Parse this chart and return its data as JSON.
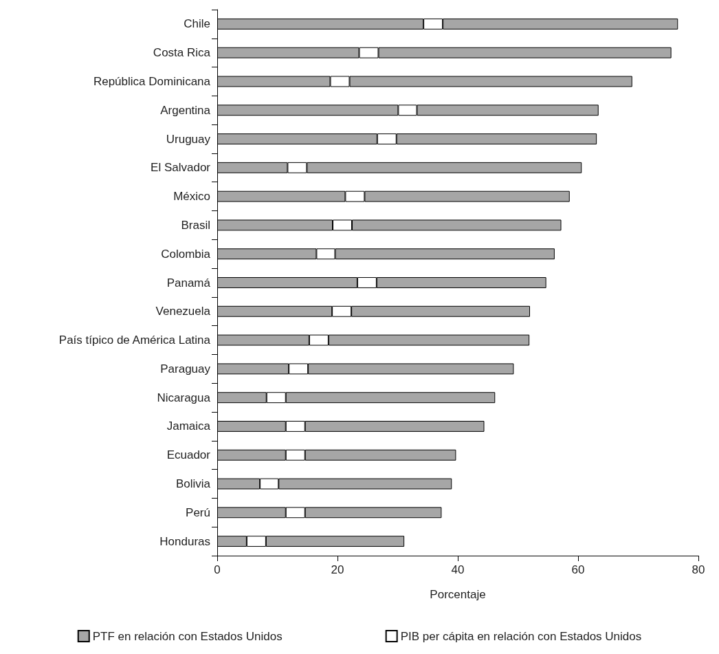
{
  "chart_data": {
    "type": "bar",
    "orientation": "horizontal",
    "stacked": true,
    "categories": [
      "Chile",
      "Costa Rica",
      "República Dominicana",
      "Argentina",
      "Uruguay",
      "El Salvador",
      "México",
      "Brasil",
      "Colombia",
      "Panamá",
      "Venezuela",
      "País típico de América Latina",
      "Paraguay",
      "Nicaragua",
      "Jamaica",
      "Ecuador",
      "Bolivia",
      "Perú",
      "Honduras"
    ],
    "series": [
      {
        "color": "#a6a6a6",
        "values": [
          34.3,
          23.6,
          18.8,
          30.1,
          26.6,
          11.7,
          21.3,
          19.2,
          16.5,
          23.3,
          19.1,
          15.3,
          11.9,
          8.2,
          11.4,
          11.4,
          7.1,
          11.4,
          4.9
        ]
      },
      {
        "name": "PIB per cápita en relación con Estados Unidos",
        "color": "#ffffff",
        "values": [
          3.2,
          3.2,
          3.2,
          3.1,
          3.2,
          3.2,
          3.2,
          3.2,
          3.1,
          3.2,
          3.2,
          3.2,
          3.2,
          3.2,
          3.2,
          3.2,
          3.1,
          3.2,
          3.2
        ]
      },
      {
        "name": "PTF en relación con Estados Unidos",
        "color": "#a6a6a6",
        "values": [
          39.1,
          48.7,
          47.0,
          30.2,
          33.3,
          45.7,
          34.1,
          34.8,
          36.5,
          28.2,
          29.7,
          33.4,
          34.2,
          34.8,
          29.8,
          25.1,
          28.8,
          22.7,
          23.0
        ]
      }
    ],
    "xlabel": "Porcentaje",
    "xlim": [
      0,
      80
    ],
    "xticks": [
      0,
      20,
      40,
      60,
      80
    ],
    "grid": false,
    "legend": "bottom"
  }
}
